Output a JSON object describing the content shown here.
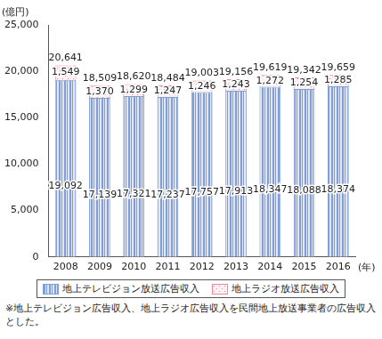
{
  "chart_data": {
    "type": "bar",
    "stacked": true,
    "data_labels": true,
    "grid": false,
    "y_label": "(億円)",
    "x_label": "(年)",
    "categories": [
      "2008",
      "2009",
      "2010",
      "2011",
      "2012",
      "2013",
      "2014",
      "2015",
      "2016"
    ],
    "series": [
      {
        "name": "地上テレビジョン放送広告収入",
        "color": "#7f9fd6",
        "values": [
          19092,
          17139,
          17321,
          17237,
          17757,
          17913,
          18347,
          18088,
          18374
        ],
        "value_labels": [
          "19,092",
          "17,139",
          "17,321",
          "17,237",
          "17,757",
          "17,913",
          "18,347",
          "18,088",
          "18,374"
        ]
      },
      {
        "name": "地上ラジオ放送広告収入",
        "color": "#e88a9c",
        "values": [
          1549,
          1370,
          1299,
          1247,
          1246,
          1243,
          1272,
          1254,
          1285
        ],
        "value_labels": [
          "1,549",
          "1,370",
          "1,299",
          "1,247",
          "1,246",
          "1,243",
          "1,272",
          "1,254",
          "1,285"
        ]
      }
    ],
    "totals": [
      20641,
      18509,
      18620,
      18484,
      19003,
      19156,
      19619,
      19342,
      19659
    ],
    "total_labels": [
      "20,641",
      "18,509",
      "18,620",
      "18,484",
      "19,003",
      "19,156",
      "19,619",
      "19,342",
      "19,659"
    ],
    "ylim": [
      0,
      25000
    ],
    "yticks": [
      {
        "value": 0,
        "label": "0"
      },
      {
        "value": 5000,
        "label": "5,000"
      },
      {
        "value": 10000,
        "label": "10,000"
      },
      {
        "value": 15000,
        "label": "15,000"
      },
      {
        "value": 20000,
        "label": "20,000"
      },
      {
        "value": 25000,
        "label": "25,000"
      }
    ],
    "footnote": "※地上テレビジョン広告収入、地上ラジオ広告収入を民間地上放送事業者の広告収入とした。"
  }
}
